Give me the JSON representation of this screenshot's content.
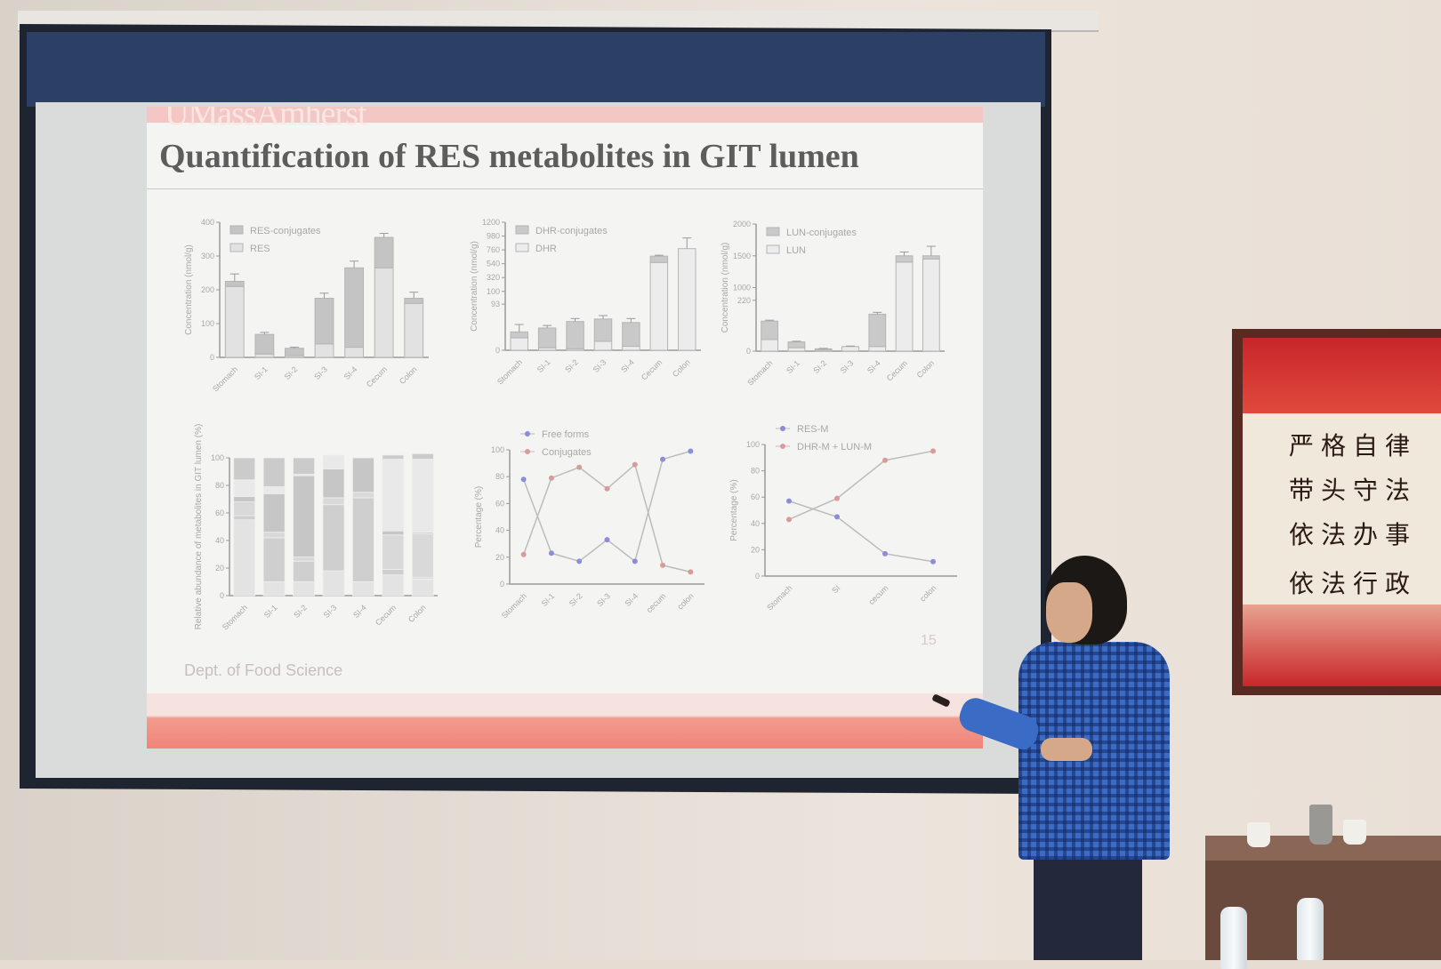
{
  "slide": {
    "logo": "UMassAmherst",
    "title": "Quantification of RES metabolites in GIT lumen",
    "footer": "Dept. of Food Science",
    "page_number": "15"
  },
  "poster": {
    "lines": [
      "严格自律",
      "带头守法",
      "依法办事",
      "依法行政"
    ]
  },
  "chart_data": [
    {
      "type": "bar",
      "stacked": true,
      "ylabel": "Concentration (nmol/g)",
      "ylim": [
        0,
        400
      ],
      "yticks": [
        "0",
        "100",
        "200",
        "300",
        "400"
      ],
      "categories": [
        "Stomach",
        "SI-1",
        "SI-2",
        "SI-3",
        "SI-4",
        "Cecum",
        "Colon"
      ],
      "series": [
        {
          "name": "RES",
          "values": [
            210,
            10,
            5,
            40,
            30,
            265,
            160
          ],
          "color": "#e2e2e2"
        },
        {
          "name": "RES-conjugates",
          "values": [
            15,
            58,
            22,
            135,
            235,
            90,
            15
          ],
          "color": "#c4c4c4"
        }
      ],
      "errors": [
        22,
        6,
        3,
        15,
        20,
        12,
        18
      ]
    },
    {
      "type": "bar",
      "stacked": true,
      "broken_axis": true,
      "ylabel": "Concentration (nmol/g)",
      "ylim": [
        0,
        1200
      ],
      "yticks": [
        "0",
        "93",
        "100",
        "320",
        "540",
        "760",
        "980",
        "1200"
      ],
      "categories": [
        "Stomach",
        "SI-1",
        "SI-2",
        "SI-3",
        "SI-4",
        "Cecum",
        "Colon"
      ],
      "series": [
        {
          "name": "DHR",
          "values": [
            25,
            5,
            3,
            18,
            8,
            560,
            780
          ],
          "color": "#ececec"
        },
        {
          "name": "DHR-conjugates",
          "values": [
            12,
            40,
            55,
            45,
            48,
            100,
            0
          ],
          "color": "#c9c9c9"
        }
      ],
      "errors": [
        15,
        5,
        6,
        7,
        8,
        15,
        170
      ]
    },
    {
      "type": "bar",
      "stacked": true,
      "broken_axis": true,
      "ylabel": "Concentration (nmol/g)",
      "ylim": [
        0,
        2000
      ],
      "yticks": [
        "0",
        "220",
        "1000",
        "1500",
        "2000"
      ],
      "categories": [
        "Stomach",
        "SI-1",
        "SI-2",
        "SI-3",
        "SI-4",
        "Cecum",
        "Colon"
      ],
      "series": [
        {
          "name": "LUN",
          "values": [
            50,
            15,
            5,
            20,
            20,
            1400,
            1450
          ],
          "color": "#ececec"
        },
        {
          "name": "LUN-conjugates",
          "values": [
            80,
            25,
            5,
            0,
            140,
            100,
            50
          ],
          "color": "#c9c9c9"
        }
      ],
      "errors": [
        4,
        3,
        2,
        2,
        8,
        60,
        150
      ]
    },
    {
      "type": "bar",
      "stacked": true,
      "ylabel": "Relative abundance of metabolites in GIT lumen (%)",
      "ylim": [
        0,
        100
      ],
      "yticks": [
        "0",
        "20",
        "40",
        "60",
        "80",
        "100"
      ],
      "categories": [
        "Stomach",
        "SI-1",
        "SI-2",
        "SI-3",
        "SI-4",
        "Cecum",
        "Colon"
      ],
      "segments": [
        [
          55,
          3,
          10,
          4,
          12,
          16
        ],
        [
          10,
          32,
          4,
          28,
          5,
          21
        ],
        [
          10,
          15,
          3,
          59,
          1,
          12
        ],
        [
          18,
          48,
          5,
          21,
          10,
          0
        ],
        [
          10,
          61,
          4,
          25,
          0,
          0
        ],
        [
          15,
          4,
          25,
          3,
          52,
          3
        ],
        [
          12,
          1,
          32,
          1,
          53,
          4
        ]
      ]
    },
    {
      "type": "line",
      "ylabel": "Percentage (%)",
      "ylim": [
        0,
        100
      ],
      "yticks": [
        "0",
        "20",
        "40",
        "60",
        "80",
        "100"
      ],
      "categories": [
        "Stomach",
        "SI-1",
        "SI-2",
        "SI-3",
        "SI-4",
        "cecum",
        "colon"
      ],
      "series": [
        {
          "name": "Free forms",
          "values": [
            78,
            23,
            17,
            33,
            17,
            93,
            99
          ],
          "color": "#8c8cd8"
        },
        {
          "name": "Conjugates",
          "values": [
            22,
            79,
            87,
            71,
            89,
            14,
            9
          ],
          "color": "#d89a9a"
        }
      ],
      "legend": "top-left"
    },
    {
      "type": "line",
      "ylabel": "Percentage (%)",
      "ylim": [
        0,
        100
      ],
      "yticks": [
        "0",
        "20",
        "40",
        "60",
        "80",
        "100"
      ],
      "categories": [
        "Stomach",
        "SI",
        "cecum",
        "colon"
      ],
      "series": [
        {
          "name": "RES-M",
          "values": [
            57,
            45,
            17,
            11
          ],
          "color": "#8c8cd8"
        },
        {
          "name": "DHR-M + LUN-M",
          "values": [
            43,
            59,
            88,
            95
          ],
          "color": "#d89a9a"
        }
      ],
      "legend": "top-left"
    }
  ]
}
